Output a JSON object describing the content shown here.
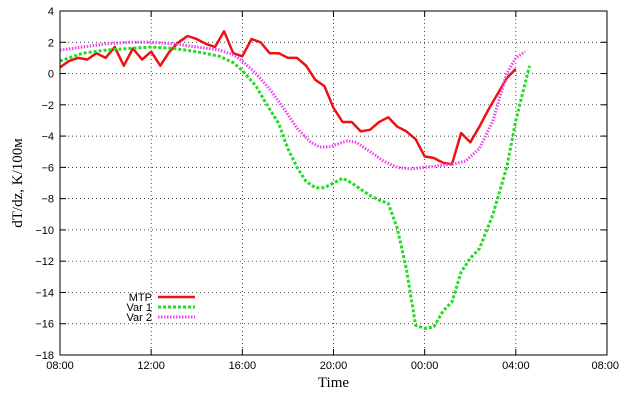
{
  "chart_data": {
    "type": "line",
    "xlabel": "Time",
    "ylabel": "dT/dz, K/100м",
    "xlim": [
      0,
      24
    ],
    "ylim": [
      -18,
      4
    ],
    "x_ticks": [
      {
        "value": 0,
        "label": "08:00"
      },
      {
        "value": 4,
        "label": "12:00"
      },
      {
        "value": 8,
        "label": "16:00"
      },
      {
        "value": 12,
        "label": "20:00"
      },
      {
        "value": 16,
        "label": "00:00"
      },
      {
        "value": 20,
        "label": "04:00"
      },
      {
        "value": 24,
        "label": "08:00"
      }
    ],
    "y_ticks": [
      {
        "value": 4,
        "label": "4"
      },
      {
        "value": 2,
        "label": "2"
      },
      {
        "value": 0,
        "label": "0"
      },
      {
        "value": -2,
        "label": "−2"
      },
      {
        "value": -4,
        "label": "−4"
      },
      {
        "value": -6,
        "label": "−6"
      },
      {
        "value": -8,
        "label": "−8"
      },
      {
        "value": -10,
        "label": "−10"
      },
      {
        "value": -12,
        "label": "−12"
      },
      {
        "value": -14,
        "label": "−14"
      },
      {
        "value": -16,
        "label": "−16"
      },
      {
        "value": -18,
        "label": "−18"
      }
    ],
    "grid": true,
    "legend_position": "bottom-left",
    "series": [
      {
        "name": "MTP",
        "color": "#ee1111",
        "style": "solid",
        "points": [
          [
            0.0,
            0.4
          ],
          [
            0.4,
            0.8
          ],
          [
            0.8,
            1.0
          ],
          [
            1.2,
            0.9
          ],
          [
            1.6,
            1.3
          ],
          [
            2.0,
            1.0
          ],
          [
            2.4,
            1.7
          ],
          [
            2.8,
            0.5
          ],
          [
            3.2,
            1.6
          ],
          [
            3.6,
            0.9
          ],
          [
            4.0,
            1.4
          ],
          [
            4.4,
            0.5
          ],
          [
            4.8,
            1.4
          ],
          [
            5.2,
            2.0
          ],
          [
            5.6,
            2.4
          ],
          [
            6.0,
            2.2
          ],
          [
            6.4,
            1.9
          ],
          [
            6.8,
            1.7
          ],
          [
            7.2,
            2.7
          ],
          [
            7.6,
            1.3
          ],
          [
            8.0,
            1.1
          ],
          [
            8.4,
            2.2
          ],
          [
            8.8,
            2.0
          ],
          [
            9.2,
            1.3
          ],
          [
            9.6,
            1.3
          ],
          [
            10.0,
            1.0
          ],
          [
            10.4,
            1.0
          ],
          [
            10.8,
            0.5
          ],
          [
            11.2,
            -0.4
          ],
          [
            11.6,
            -0.8
          ],
          [
            12.0,
            -2.2
          ],
          [
            12.4,
            -3.1
          ],
          [
            12.8,
            -3.1
          ],
          [
            13.2,
            -3.7
          ],
          [
            13.6,
            -3.6
          ],
          [
            14.0,
            -3.1
          ],
          [
            14.4,
            -2.8
          ],
          [
            14.8,
            -3.4
          ],
          [
            15.2,
            -3.7
          ],
          [
            15.6,
            -4.2
          ],
          [
            16.0,
            -5.3
          ],
          [
            16.4,
            -5.4
          ],
          [
            16.8,
            -5.7
          ],
          [
            17.2,
            -5.8
          ],
          [
            17.6,
            -3.8
          ],
          [
            18.0,
            -4.4
          ],
          [
            18.4,
            -3.4
          ],
          [
            18.8,
            -2.3
          ],
          [
            19.2,
            -1.3
          ],
          [
            19.6,
            -0.3
          ],
          [
            20.0,
            0.3
          ]
        ]
      },
      {
        "name": "Var 1",
        "color": "#22dd22",
        "style": "dashed",
        "points": [
          [
            0.0,
            0.8
          ],
          [
            1.0,
            1.3
          ],
          [
            2.0,
            1.5
          ],
          [
            3.0,
            1.6
          ],
          [
            4.0,
            1.7
          ],
          [
            5.0,
            1.6
          ],
          [
            6.0,
            1.4
          ],
          [
            7.0,
            1.1
          ],
          [
            7.6,
            0.7
          ],
          [
            8.0,
            0.2
          ],
          [
            8.6,
            -0.8
          ],
          [
            9.0,
            -1.8
          ],
          [
            9.6,
            -3.2
          ],
          [
            10.0,
            -4.8
          ],
          [
            10.4,
            -6.0
          ],
          [
            10.8,
            -6.9
          ],
          [
            11.2,
            -7.3
          ],
          [
            11.6,
            -7.3
          ],
          [
            12.0,
            -7.0
          ],
          [
            12.4,
            -6.7
          ],
          [
            12.8,
            -7.0
          ],
          [
            13.2,
            -7.4
          ],
          [
            13.6,
            -7.8
          ],
          [
            14.0,
            -8.1
          ],
          [
            14.4,
            -8.3
          ],
          [
            14.8,
            -9.9
          ],
          [
            15.2,
            -12.5
          ],
          [
            15.6,
            -16.1
          ],
          [
            16.0,
            -16.3
          ],
          [
            16.4,
            -16.2
          ],
          [
            16.8,
            -15.2
          ],
          [
            17.2,
            -14.6
          ],
          [
            17.6,
            -12.7
          ],
          [
            18.0,
            -11.8
          ],
          [
            18.4,
            -11.2
          ],
          [
            19.0,
            -9.0
          ],
          [
            19.6,
            -6.0
          ],
          [
            20.0,
            -3.0
          ],
          [
            20.6,
            0.5
          ]
        ]
      },
      {
        "name": "Var 2",
        "color": "#ee44ee",
        "style": "dotted",
        "points": [
          [
            0.0,
            1.5
          ],
          [
            1.0,
            1.7
          ],
          [
            2.0,
            1.9
          ],
          [
            3.0,
            2.0
          ],
          [
            4.0,
            2.0
          ],
          [
            5.0,
            1.9
          ],
          [
            6.0,
            1.7
          ],
          [
            7.0,
            1.5
          ],
          [
            7.6,
            1.2
          ],
          [
            8.0,
            0.8
          ],
          [
            8.6,
            0.0
          ],
          [
            9.2,
            -1.0
          ],
          [
            9.8,
            -2.2
          ],
          [
            10.4,
            -3.5
          ],
          [
            11.0,
            -4.4
          ],
          [
            11.4,
            -4.7
          ],
          [
            11.8,
            -4.7
          ],
          [
            12.2,
            -4.5
          ],
          [
            12.6,
            -4.3
          ],
          [
            13.0,
            -4.4
          ],
          [
            13.6,
            -5.0
          ],
          [
            14.2,
            -5.6
          ],
          [
            14.8,
            -6.0
          ],
          [
            15.4,
            -6.1
          ],
          [
            16.0,
            -6.0
          ],
          [
            16.6,
            -5.9
          ],
          [
            17.2,
            -5.8
          ],
          [
            17.8,
            -5.6
          ],
          [
            18.4,
            -4.8
          ],
          [
            19.0,
            -3.0
          ],
          [
            19.6,
            0.0
          ],
          [
            20.0,
            1.0
          ],
          [
            20.4,
            1.4
          ]
        ]
      }
    ]
  }
}
